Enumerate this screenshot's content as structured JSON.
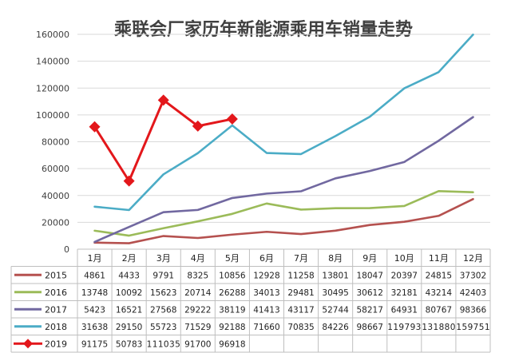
{
  "chart_data": {
    "type": "line",
    "title": "乘联会厂家历年新能源乘用车销量走势",
    "categories": [
      "1月",
      "2月",
      "3月",
      "4月",
      "5月",
      "6月",
      "7月",
      "8月",
      "9月",
      "10月",
      "11月",
      "12月"
    ],
    "yticks": [
      "0",
      "20000",
      "40000",
      "60000",
      "80000",
      "100000",
      "120000",
      "140000",
      "160000"
    ],
    "ylim": [
      0,
      160000
    ],
    "grid": true,
    "legend": "data-table-bottom",
    "series": [
      {
        "name": "2015",
        "color": "#b5514f",
        "marker": "none",
        "values": [
          4861,
          4433,
          9791,
          8325,
          10856,
          12928,
          11258,
          13801,
          18047,
          20397,
          24815,
          37302
        ],
        "labels": [
          "4861",
          "4433",
          "9791",
          "8325",
          "10856",
          "12928",
          "11258",
          "13801",
          "18047",
          "20397",
          "24815",
          "37302"
        ]
      },
      {
        "name": "2016",
        "color": "#9bbb59",
        "marker": "none",
        "values": [
          13748,
          10092,
          15623,
          20714,
          26288,
          34013,
          29481,
          30495,
          30612,
          32181,
          43214,
          42403
        ],
        "labels": [
          "13748",
          "10092",
          "15623",
          "20714",
          "26288",
          "34013",
          "29481",
          "30495",
          "30612",
          "32181",
          "43214",
          "42403"
        ]
      },
      {
        "name": "2017",
        "color": "#7168a0",
        "marker": "none",
        "values": [
          5423,
          16521,
          27568,
          29222,
          38119,
          41413,
          43117,
          52744,
          58217,
          64931,
          80767,
          98366
        ],
        "labels": [
          "5423",
          "16521",
          "27568",
          "29222",
          "38119",
          "41413",
          "43117",
          "52744",
          "58217",
          "64931",
          "80767",
          "98366"
        ]
      },
      {
        "name": "2018",
        "color": "#4bacc6",
        "marker": "none",
        "values": [
          31638,
          29150,
          55723,
          71529,
          92188,
          71660,
          70835,
          84226,
          98667,
          119793,
          131880,
          159751
        ],
        "labels": [
          "31638",
          "29150",
          "55723",
          "71529",
          "92188",
          "71660",
          "70835",
          "84226",
          "98667",
          "119793",
          "131880",
          "159751"
        ]
      },
      {
        "name": "2019",
        "color": "#e3171b",
        "marker": "diamond",
        "values": [
          91175,
          50783,
          111035,
          91700,
          96918,
          null,
          null,
          null,
          null,
          null,
          null,
          null
        ],
        "labels": [
          "91175",
          "50783",
          "111035",
          "91700",
          "96918",
          "",
          "",
          "",
          "",
          "",
          "",
          ""
        ]
      }
    ]
  }
}
